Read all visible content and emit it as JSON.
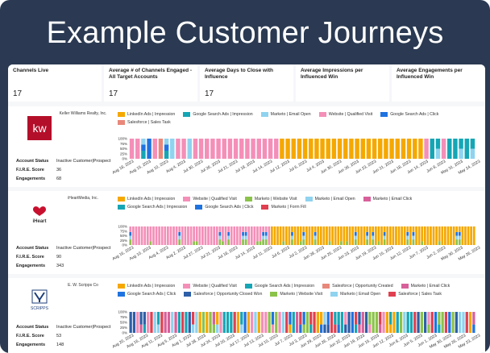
{
  "header": {
    "title": "Example Customer Journeys"
  },
  "kpis": [
    {
      "label": "Channels Live",
      "value": "17"
    },
    {
      "label": "Average # of Channels Engaged - All Target Accounts",
      "value": "17"
    },
    {
      "label": "Average Days to Close with Influence",
      "value": "17"
    },
    {
      "label": "Average Impressions per Influenced Win",
      "value": ""
    },
    {
      "label": "Average Engagements per Influenced Win",
      "value": ""
    }
  ],
  "colors": {
    "orange": "#f5a800",
    "teal": "#15a6b5",
    "lightblue": "#8fd3ef",
    "pink": "#f48fb8",
    "blue": "#1f73e0",
    "salmon": "#e8887a",
    "green": "#8bc34a",
    "darkblue": "#2d5fa8",
    "magenta": "#d7609a",
    "red": "#e04050",
    "purple": "#7e57c2",
    "gray": "#7a8a99"
  },
  "accounts": [
    {
      "company": "Keller Williams Realty, Inc.",
      "logo": "kw-logo",
      "attrs": [
        {
          "k": "Account Status",
          "v": "Inactive Customer|Prospect"
        },
        {
          "k": "F.I.R.E. Score",
          "v": "36"
        },
        {
          "k": "Engagements",
          "v": "68"
        }
      ],
      "legend": [
        {
          "label": "LinkedIn Ads | Impression",
          "color": "#f5a800"
        },
        {
          "label": "Google Search Ads | Impression",
          "color": "#15a6b5"
        },
        {
          "label": "Marketo | Email Open",
          "color": "#8fd3ef"
        },
        {
          "label": "Website | Qualified Visit",
          "color": "#f48fb8"
        },
        {
          "label": "Google Search Ads | Click",
          "color": "#1f73e0"
        },
        {
          "label": "Salesforce | Sales Task",
          "color": "#e8887a"
        }
      ],
      "ticks": [
        "Aug 18, 2023",
        "Aug 15, 2023",
        "Aug 10, 2023",
        "Aug 4, 2023",
        "Jul 30, 2023",
        "Jul 26, 2023",
        "Jul 21, 2023",
        "Jul 18, 2023",
        "Jul 14, 2023",
        "Jul 12, 2023",
        "Jul 6, 2023",
        "Jul 4, 2023",
        "Jun 30, 2023",
        "Jun 26, 2023",
        "Jun 23, 2023",
        "Jun 21, 2023",
        "Jun 18, 2023",
        "Jun 14, 2023",
        "Jun 8, 2023",
        "May 31, 2023",
        "May 24, 2023"
      ],
      "yticks": [
        "100%",
        "75%",
        "50%",
        "25%",
        "0%"
      ],
      "chart_data": {
        "type": "bar",
        "stacked": true,
        "normalized": true,
        "bars": 60,
        "pattern": [
          "pink",
          "pink",
          "teal",
          "blue",
          "pink",
          "salmon",
          "teal",
          "lightblue",
          "pink",
          "pink",
          "lightblue",
          "pink",
          "pink",
          "pink",
          "pink",
          "pink",
          "pink",
          "pink",
          "pink",
          "pink",
          "pink",
          "pink",
          "pink",
          "pink",
          "pink",
          "pink",
          "orange",
          "orange",
          "orange",
          "orange",
          "orange",
          "orange",
          "orange",
          "orange",
          "orange",
          "orange",
          "orange",
          "orange",
          "orange",
          "orange",
          "orange",
          "orange",
          "orange",
          "orange",
          "orange",
          "orange",
          "orange",
          "orange",
          "orange",
          "orange",
          "orange",
          "pink",
          "teal",
          "lightblue",
          "pink",
          "teal",
          "teal",
          "lightblue",
          "teal",
          "lightblue"
        ]
      }
    },
    {
      "company": "iHeartMedia, Inc.",
      "logo": "iheart-logo",
      "logo_text": "iHeart",
      "attrs": [
        {
          "k": "Account Status",
          "v": "Inactive Customer|Prospect"
        },
        {
          "k": "F.I.R.E. Score",
          "v": "90"
        },
        {
          "k": "Engagements",
          "v": "343"
        }
      ],
      "legend": [
        {
          "label": "LinkedIn Ads | Impression",
          "color": "#f5a800"
        },
        {
          "label": "Website | Qualified Visit",
          "color": "#f48fb8"
        },
        {
          "label": "Marketo | Website Visit",
          "color": "#8bc34a"
        },
        {
          "label": "Marketo | Email Open",
          "color": "#8fd3ef"
        },
        {
          "label": "Marketo | Email Click",
          "color": "#d7609a"
        },
        {
          "label": "Google Search Ads | Impression",
          "color": "#15a6b5"
        },
        {
          "label": "Google Search Ads | Click",
          "color": "#1f73e0"
        },
        {
          "label": "Marketo | Form Fill",
          "color": "#e04050"
        }
      ],
      "ticks": [
        "Aug 16, 2023",
        "Aug 10, 2023",
        "Aug 4, 2023",
        "Aug 2, 2023",
        "Jul 27, 2023",
        "Jul 21, 2023",
        "Jul 18, 2023",
        "Jul 14, 2023",
        "Jul 11, 2023",
        "Jul 6, 2023",
        "Jul 2, 2023",
        "Jun 28, 2023",
        "Jun 25, 2023",
        "Jun 23, 2023",
        "Jun 19, 2023",
        "Jun 15, 2023",
        "Jun 12, 2023",
        "Jun 7, 2023",
        "Jun 2, 2023",
        "May 30, 2023",
        "May 26, 2023"
      ],
      "yticks": [
        "100%",
        "75%",
        "50%",
        "25%",
        "0%"
      ],
      "chart_data": {
        "type": "bar",
        "stacked": true,
        "normalized": true,
        "bars": 120,
        "mix": "pink-dominant-then-orange"
      }
    },
    {
      "company": "E. W. Scripps Co",
      "logo": "scripps-logo",
      "logo_text": "SCRIPPS",
      "attrs": [
        {
          "k": "Account Status",
          "v": "Inactive Customer|Prospect"
        },
        {
          "k": "F.I.R.E. Score",
          "v": "53"
        },
        {
          "k": "Engagements",
          "v": "148"
        }
      ],
      "legend": [
        {
          "label": "LinkedIn Ads | Impression",
          "color": "#f5a800"
        },
        {
          "label": "Website | Qualified Visit",
          "color": "#f48fb8"
        },
        {
          "label": "Google Search Ads | Impression",
          "color": "#15a6b5"
        },
        {
          "label": "Salesforce | Opportunity Created",
          "color": "#e8887a"
        },
        {
          "label": "Marketo | Email Click",
          "color": "#d7609a"
        },
        {
          "label": "Google Search Ads | Click",
          "color": "#1f73e0"
        },
        {
          "label": "Salesforce | Opportunity Closed Won",
          "color": "#2d5fa8"
        },
        {
          "label": "Marketo | Website Visit",
          "color": "#8bc34a"
        },
        {
          "label": "Marketo | Email Open",
          "color": "#8fd3ef"
        },
        {
          "label": "Salesforce | Sales Task",
          "color": "#e04050"
        }
      ],
      "ticks": [
        "Aug 20, 2023",
        "Aug 16, 2023",
        "Aug 11, 2023",
        "Aug 5, 2023",
        "Aug 1, 2023",
        "Jul 28, 2023",
        "Jul 24, 2023",
        "Jul 20, 2023",
        "Jul 17, 2023",
        "Jul 13, 2023",
        "Jul 10, 2023",
        "Jul 7, 2023",
        "Jul 3, 2023",
        "Jun 29, 2023",
        "Jun 26, 2023",
        "Jun 22, 2023",
        "Jun 19, 2023",
        "Jun 15, 2023",
        "Jun 12, 2023",
        "Jun 8, 2023",
        "Jun 5, 2023",
        "Jun 1, 2023",
        "May 30, 2023",
        "May 26, 2023",
        "May 23, 2023"
      ],
      "yticks": [
        "100%",
        "75%",
        "50%",
        "25%",
        "0%"
      ],
      "chart_data": {
        "type": "bar",
        "stacked": true,
        "normalized": true,
        "bars": 100,
        "mix": "mixed-channels"
      }
    }
  ]
}
